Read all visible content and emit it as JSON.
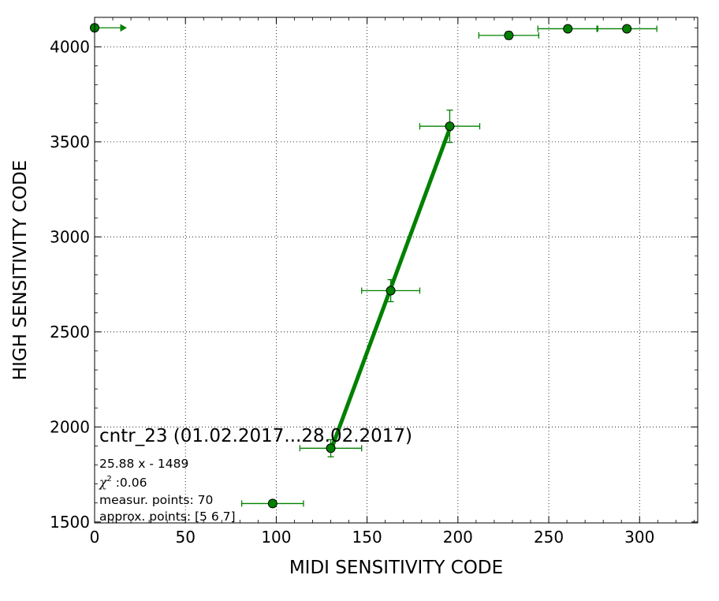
{
  "chart_data": {
    "type": "scatter",
    "xlabel": "MIDI SENSITIVITY CODE",
    "ylabel": "HIGH SENSITIVITY CODE",
    "xlim": [
      0,
      332
    ],
    "ylim": [
      1495,
      4155
    ],
    "xticks": [
      0,
      50,
      100,
      150,
      200,
      250,
      300
    ],
    "yticks": [
      1500,
      2000,
      2500,
      3000,
      3500,
      4000
    ],
    "xtick_labels": [
      "0",
      "50",
      "100",
      "150",
      "200",
      "250",
      "300"
    ],
    "ytick_labels": [
      "1500",
      "2000",
      "2500",
      "3000",
      "3500",
      "4000"
    ],
    "grid": true,
    "series_color": "#008000",
    "points": [
      {
        "x": 0,
        "y": 4100,
        "xerr": 0,
        "yerr": 0,
        "arrow_right": true
      },
      {
        "x": 98,
        "y": 1597,
        "xerr": 17,
        "yerr": 0
      },
      {
        "x": 130,
        "y": 1888,
        "xerr": 17,
        "yerr": 45
      },
      {
        "x": 163,
        "y": 2717,
        "xerr": 16,
        "yerr": 58
      },
      {
        "x": 195.5,
        "y": 3582,
        "xerr": 16.5,
        "yerr": 85
      },
      {
        "x": 228,
        "y": 4060,
        "xerr": 16.5,
        "yerr": 20
      },
      {
        "x": 260.5,
        "y": 4095,
        "xerr": 16.5,
        "yerr": 0
      },
      {
        "x": 293,
        "y": 4095,
        "xerr": 16.5,
        "yerr": 0
      }
    ],
    "fit_line": {
      "slope": 25.88,
      "intercept": -1489,
      "x_range": [
        130,
        195.5
      ]
    },
    "annotations": {
      "title": "cntr_23 (01.02.2017...28.02.2017)",
      "equation": "25.88 x - 1489",
      "chi2_symbol": "χ",
      "chi2_exp": "2",
      "chi2_value": " :0.06",
      "measur_points": "measur. points: 70",
      "approx_points": "approx. points: [5 6 7]"
    }
  }
}
